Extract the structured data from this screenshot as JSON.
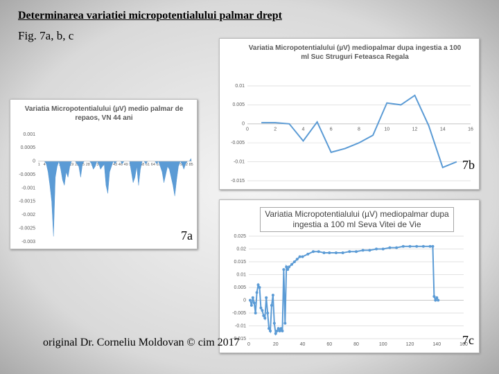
{
  "title": "Determinarea variatiei micropotentialului palmar drept",
  "subtitle": "Fig. 7a, b, c",
  "footer": "original Dr. Corneliu Moldovan © cim 2017",
  "chart_data": [
    {
      "type": "area",
      "title": "Variatia Micropotentialului (µV) medio palmar de repaos, VN 44 ani",
      "panel_label": "7a",
      "color": "#5b9bd5",
      "categories": [
        1,
        null,
        null,
        4,
        null,
        null,
        7,
        null,
        null,
        10,
        null,
        null,
        13,
        null,
        null,
        16,
        null,
        null,
        19,
        null,
        null,
        22,
        null,
        null,
        25,
        null,
        null,
        28,
        null,
        null,
        31,
        null,
        null,
        34,
        null,
        null,
        37,
        null,
        null,
        40,
        null,
        null,
        43,
        null,
        null,
        46,
        null,
        null,
        49,
        null,
        null,
        52,
        null,
        null,
        55,
        null,
        null,
        58,
        null,
        null,
        61,
        null,
        null,
        64,
        null,
        null,
        67,
        null,
        null,
        70,
        null,
        null,
        73,
        null,
        null,
        76,
        null,
        null,
        79,
        null,
        null,
        82,
        null,
        null,
        85
      ],
      "values": [
        0,
        0,
        0,
        0,
        -0.0001,
        -0.0004,
        -0.0009,
        -0.0015,
        -0.0028,
        -0.0006,
        -0.0002,
        0,
        -0.0003,
        -0.0007,
        -0.0009,
        -0.0004,
        -0.0006,
        -0.0002,
        0,
        0,
        0,
        -0.0001,
        -0.0002,
        -0.0006,
        -0.0001,
        0,
        0,
        0,
        0,
        -0.0001,
        -0.0003,
        -0.0002,
        0,
        -0.0001,
        -0.0003,
        -0.0002,
        -0.0001,
        -0.0009,
        -0.0012,
        -0.0004,
        -0.0002,
        0,
        -0.0001,
        0,
        0,
        0,
        -0.0001,
        0,
        0,
        0,
        0,
        -0.0004,
        -0.0008,
        -0.0006,
        -0.0002,
        -0.0009,
        -0.0003,
        0,
        0,
        -0.0001,
        0,
        0,
        0,
        0,
        0,
        -0.0001,
        0,
        -0.0002,
        -0.0004,
        -0.0008,
        -0.0005,
        -0.0002,
        -0.0003,
        -0.0006,
        -0.0009,
        -0.0013,
        -0.0007,
        -0.0002,
        0,
        -0.0001,
        -0.0003,
        -0.0001,
        0,
        0,
        0.0001
      ],
      "ylim": [
        -0.003,
        0.001
      ],
      "yticks": [
        0.001,
        0.0005,
        0,
        -0.0005,
        -0.001,
        -0.0015,
        -0.002,
        -0.0025,
        -0.003
      ],
      "grid": false
    },
    {
      "type": "line",
      "title": "Variatia Micropotentialului (µV) mediopalmar dupa ingestia a 100 ml Suc Struguri Feteasca Regala",
      "panel_label": "7b",
      "color": "#5b9bd5",
      "x": [
        1,
        2,
        3,
        4,
        5,
        6,
        7,
        8,
        9,
        10,
        11,
        12,
        13,
        14,
        15
      ],
      "values": [
        0.0003,
        0.0003,
        0,
        -0.0045,
        0.0005,
        -0.0075,
        -0.0065,
        -0.005,
        -0.003,
        0.0055,
        0.005,
        0.0075,
        -0.0005,
        -0.0115,
        -0.01
      ],
      "xlim": [
        0,
        16
      ],
      "xticks": [
        0,
        2,
        4,
        6,
        8,
        10,
        12,
        14,
        16
      ],
      "ylim": [
        -0.015,
        0.01
      ],
      "yticks": [
        0.01,
        0.005,
        0,
        -0.005,
        -0.01,
        -0.015
      ],
      "grid": true,
      "markers": false
    },
    {
      "type": "line",
      "title": "Variatia Micropotentialului (µV) mediopalmar dupa ingestia a 100 ml Seva Vitei de Vie",
      "panel_label": "7c",
      "color": "#5b9bd5",
      "x": [
        1,
        2,
        3,
        4,
        5,
        6,
        7,
        8,
        9,
        10,
        11,
        12,
        13,
        14,
        15,
        16,
        17,
        18,
        19,
        20,
        21,
        22,
        23,
        24,
        25,
        26,
        27,
        28,
        29,
        30,
        32,
        34,
        36,
        38,
        40,
        44,
        48,
        52,
        56,
        60,
        65,
        70,
        75,
        80,
        85,
        90,
        95,
        100,
        105,
        110,
        115,
        120,
        125,
        130,
        135,
        137,
        138,
        139,
        140,
        141
      ],
      "values": [
        0,
        -0.002,
        0.001,
        -0.001,
        -0.005,
        0.003,
        0.006,
        0.005,
        -0.003,
        -0.004,
        -0.006,
        -0.007,
        0.001,
        -0.005,
        -0.011,
        -0.012,
        -0.002,
        0.002,
        -0.009,
        -0.013,
        -0.012,
        -0.011,
        -0.012,
        -0.011,
        -0.012,
        0.012,
        -0.009,
        0.013,
        0.012,
        0.013,
        0.014,
        0.015,
        0.016,
        0.017,
        0.017,
        0.018,
        0.019,
        0.019,
        0.0185,
        0.0185,
        0.0185,
        0.0185,
        0.019,
        0.019,
        0.0195,
        0.0195,
        0.02,
        0.02,
        0.0205,
        0.0205,
        0.021,
        0.021,
        0.021,
        0.021,
        0.021,
        0.021,
        0.0015,
        0,
        0.001,
        0
      ],
      "xlim": [
        0,
        160
      ],
      "xticks": [
        0,
        20,
        40,
        60,
        80,
        100,
        120,
        140,
        160
      ],
      "ylim": [
        -0.015,
        0.025
      ],
      "yticks": [
        0.025,
        0.02,
        0.015,
        0.01,
        0.005,
        0,
        -0.005,
        -0.01,
        -0.015
      ],
      "grid": true,
      "markers": true
    }
  ]
}
